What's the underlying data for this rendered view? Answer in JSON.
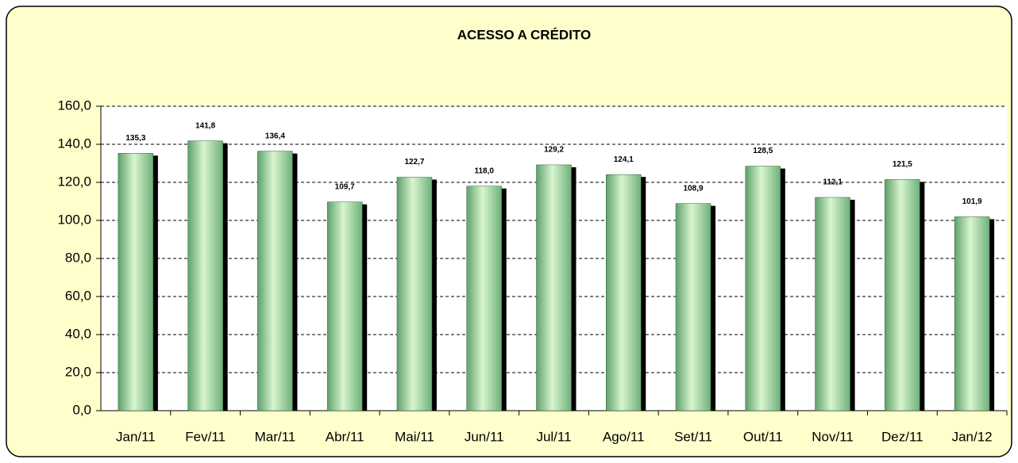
{
  "chart_data": {
    "type": "bar",
    "title": "ACESSO A CRÉDITO",
    "categories": [
      "Jan/11",
      "Fev/11",
      "Mar/11",
      "Abr/11",
      "Mai/11",
      "Jun/11",
      "Jul/11",
      "Ago/11",
      "Set/11",
      "Out/11",
      "Nov/11",
      "Dez/11",
      "Jan/12"
    ],
    "values": [
      135.3,
      141.8,
      136.4,
      109.7,
      122.7,
      118.0,
      129.2,
      124.1,
      108.9,
      128.5,
      112.1,
      121.5,
      101.9
    ],
    "value_labels": [
      "135,3",
      "141,8",
      "136,4",
      "109,7",
      "122,7",
      "118,0",
      "129,2",
      "124,1",
      "108,9",
      "128,5",
      "112,1",
      "121,5",
      "101,9"
    ],
    "color": "#99dd99",
    "ylim": [
      0,
      160
    ],
    "yticks": [
      {
        "value": 0,
        "label": "0,0"
      },
      {
        "value": 20,
        "label": "20,0"
      },
      {
        "value": 40,
        "label": "40,0"
      },
      {
        "value": 60,
        "label": "60,0"
      },
      {
        "value": 80,
        "label": "80,0"
      },
      {
        "value": 100,
        "label": "100,0"
      },
      {
        "value": 120,
        "label": "120,0"
      },
      {
        "value": 140,
        "label": "140,0"
      },
      {
        "value": 160,
        "label": "160,0"
      }
    ],
    "grid": true
  }
}
